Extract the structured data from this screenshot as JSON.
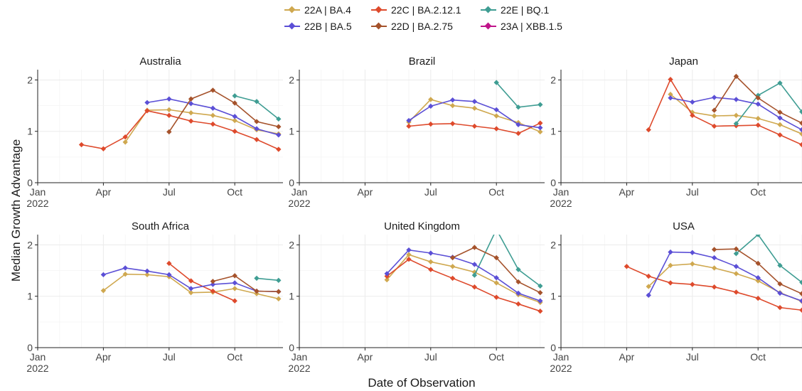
{
  "figure": {
    "ylabel": "Median Growth Advantage",
    "xlabel": "Date of Observation"
  },
  "legend": [
    {
      "label": "22A | BA.4",
      "color": "#cfa84f"
    },
    {
      "label": "22C | BA.2.12.1",
      "color": "#de4a2c"
    },
    {
      "label": "22E | BQ.1",
      "color": "#3f9d93"
    },
    {
      "label": "22B | BA.5",
      "color": "#5b4fd6"
    },
    {
      "label": "22D | BA.2.75",
      "color": "#a5522b"
    },
    {
      "label": "23A | XBB.1.5",
      "color": "#c0148a"
    }
  ],
  "chart_data": [
    {
      "type": "line",
      "title": "Australia",
      "xlim": [
        "2022-01-01",
        "2022-12-01"
      ],
      "ylim": [
        0,
        2.2
      ],
      "xticks": [
        "Jan\n2022",
        "Apr",
        "Jul",
        "Oct"
      ],
      "yticks": [
        "0",
        "1",
        "2"
      ],
      "series": [
        {
          "name": "22A | BA.4",
          "color": "#cfa84f",
          "x": [
            "2022-05-01",
            "2022-06-01",
            "2022-07-01",
            "2022-08-01",
            "2022-09-01",
            "2022-10-01",
            "2022-11-01",
            "2022-12-01"
          ],
          "y": [
            0.79,
            1.41,
            1.42,
            1.36,
            1.31,
            1.21,
            1.03,
            0.95
          ]
        },
        {
          "name": "22C | BA.2.12.1",
          "color": "#de4a2c",
          "x": [
            "2022-03-01",
            "2022-04-01",
            "2022-05-01",
            "2022-06-01",
            "2022-07-01",
            "2022-08-01",
            "2022-09-01",
            "2022-10-01",
            "2022-11-01",
            "2022-12-01"
          ],
          "y": [
            0.74,
            0.66,
            0.89,
            1.4,
            1.31,
            1.2,
            1.14,
            1.0,
            0.84,
            0.65
          ]
        },
        {
          "name": "22E | BQ.1",
          "color": "#3f9d93",
          "x": [
            "2022-10-01",
            "2022-11-01",
            "2022-12-01"
          ],
          "y": [
            1.69,
            1.58,
            1.24
          ]
        },
        {
          "name": "22B | BA.5",
          "color": "#5b4fd6",
          "x": [
            "2022-06-01",
            "2022-07-01",
            "2022-08-01",
            "2022-09-01",
            "2022-10-01",
            "2022-11-01",
            "2022-12-01"
          ],
          "y": [
            1.56,
            1.63,
            1.54,
            1.45,
            1.29,
            1.05,
            0.93
          ]
        },
        {
          "name": "22D | BA.2.75",
          "color": "#a5522b",
          "x": [
            "2022-07-01",
            "2022-08-01",
            "2022-09-01",
            "2022-10-01",
            "2022-11-01",
            "2022-12-01"
          ],
          "y": [
            0.99,
            1.63,
            1.8,
            1.55,
            1.19,
            1.09
          ]
        }
      ]
    },
    {
      "type": "line",
      "title": "Brazil",
      "xlim": [
        "2022-01-01",
        "2022-12-01"
      ],
      "ylim": [
        0,
        2.2
      ],
      "xticks": [
        "Jan\n2022",
        "Apr",
        "Jul",
        "Oct"
      ],
      "yticks": [
        "0",
        "1",
        "2"
      ],
      "series": [
        {
          "name": "22A | BA.4",
          "color": "#cfa84f",
          "x": [
            "2022-06-01",
            "2022-07-01",
            "2022-08-01",
            "2022-09-01",
            "2022-10-01",
            "2022-11-01",
            "2022-12-01"
          ],
          "y": [
            1.18,
            1.62,
            1.5,
            1.45,
            1.3,
            1.17,
            0.99
          ]
        },
        {
          "name": "22C | BA.2.12.1",
          "color": "#de4a2c",
          "x": [
            "2022-06-01",
            "2022-07-01",
            "2022-08-01",
            "2022-09-01",
            "2022-10-01",
            "2022-11-01",
            "2022-12-01"
          ],
          "y": [
            1.1,
            1.14,
            1.15,
            1.1,
            1.05,
            0.96,
            1.16
          ]
        },
        {
          "name": "22E | BQ.1",
          "color": "#3f9d93",
          "x": [
            "2022-10-01",
            "2022-11-01",
            "2022-12-01"
          ],
          "y": [
            1.95,
            1.47,
            1.52
          ]
        },
        {
          "name": "22B | BA.5",
          "color": "#5b4fd6",
          "x": [
            "2022-06-01",
            "2022-07-01",
            "2022-08-01",
            "2022-09-01",
            "2022-10-01",
            "2022-11-01",
            "2022-12-01"
          ],
          "y": [
            1.21,
            1.49,
            1.61,
            1.58,
            1.42,
            1.13,
            1.07
          ]
        }
      ]
    },
    {
      "type": "line",
      "title": "Japan",
      "xlim": [
        "2022-01-01",
        "2022-12-01"
      ],
      "ylim": [
        0,
        2.2
      ],
      "xticks": [
        "Jan\n2022",
        "Apr",
        "Jul",
        "Oct"
      ],
      "yticks": [
        "0",
        "1",
        "2"
      ],
      "series": [
        {
          "name": "22A | BA.4",
          "color": "#cfa84f",
          "x": [
            "2022-06-01",
            "2022-07-01",
            "2022-08-01",
            "2022-09-01",
            "2022-10-01",
            "2022-11-01",
            "2022-12-01"
          ],
          "y": [
            1.72,
            1.37,
            1.3,
            1.31,
            1.25,
            1.13,
            0.95
          ]
        },
        {
          "name": "22C | BA.2.12.1",
          "color": "#de4a2c",
          "x": [
            "2022-05-01",
            "2022-06-01",
            "2022-07-01",
            "2022-08-01",
            "2022-09-01",
            "2022-10-01",
            "2022-11-01",
            "2022-12-01"
          ],
          "y": [
            1.03,
            2.01,
            1.31,
            1.1,
            1.11,
            1.12,
            0.93,
            0.74
          ]
        },
        {
          "name": "22E | BQ.1",
          "color": "#3f9d93",
          "x": [
            "2022-09-01",
            "2022-10-01",
            "2022-11-01",
            "2022-12-01"
          ],
          "y": [
            1.15,
            1.7,
            1.94,
            1.38
          ]
        },
        {
          "name": "22B | BA.5",
          "color": "#5b4fd6",
          "x": [
            "2022-06-01",
            "2022-07-01",
            "2022-08-01",
            "2022-09-01",
            "2022-10-01",
            "2022-11-01",
            "2022-12-01"
          ],
          "y": [
            1.65,
            1.57,
            1.66,
            1.62,
            1.53,
            1.26,
            1.03
          ]
        },
        {
          "name": "22D | BA.2.75",
          "color": "#a5522b",
          "x": [
            "2022-08-01",
            "2022-09-01",
            "2022-10-01",
            "2022-11-01",
            "2022-12-01"
          ],
          "y": [
            1.41,
            2.07,
            1.65,
            1.37,
            1.16
          ]
        }
      ]
    },
    {
      "type": "line",
      "title": "South Africa",
      "xlim": [
        "2022-01-01",
        "2022-12-01"
      ],
      "ylim": [
        0,
        2.2
      ],
      "xticks": [
        "Jan\n2022",
        "Apr",
        "Jul",
        "Oct"
      ],
      "yticks": [
        "0",
        "1",
        "2"
      ],
      "series": [
        {
          "name": "22A | BA.4",
          "color": "#cfa84f",
          "x": [
            "2022-04-01",
            "2022-05-01",
            "2022-06-01",
            "2022-07-01",
            "2022-08-01",
            "2022-09-01",
            "2022-10-01",
            "2022-11-01",
            "2022-12-01"
          ],
          "y": [
            1.11,
            1.43,
            1.42,
            1.38,
            1.07,
            1.08,
            1.15,
            1.05,
            0.95
          ]
        },
        {
          "name": "22C | BA.2.12.1",
          "color": "#de4a2c",
          "x": [
            "2022-07-01",
            "2022-08-01",
            "2022-09-01",
            "2022-10-01"
          ],
          "y": [
            1.64,
            1.3,
            1.1,
            0.91
          ]
        },
        {
          "name": "22E | BQ.1",
          "color": "#3f9d93",
          "x": [
            "2022-11-01",
            "2022-12-01"
          ],
          "y": [
            1.35,
            1.31
          ]
        },
        {
          "name": "22B | BA.5",
          "color": "#5b4fd6",
          "x": [
            "2022-04-01",
            "2022-05-01",
            "2022-06-01",
            "2022-07-01",
            "2022-08-01",
            "2022-09-01",
            "2022-10-01",
            "2022-11-01",
            "2022-12-01"
          ],
          "y": [
            1.42,
            1.55,
            1.49,
            1.42,
            1.15,
            1.23,
            1.26,
            1.1,
            1.09
          ]
        },
        {
          "name": "22D | BA.2.75",
          "color": "#a5522b",
          "x": [
            "2022-09-01",
            "2022-10-01",
            "2022-11-01",
            "2022-12-01"
          ],
          "y": [
            1.29,
            1.4,
            1.1,
            1.09
          ]
        }
      ]
    },
    {
      "type": "line",
      "title": "United Kingdom",
      "xlim": [
        "2022-01-01",
        "2022-12-01"
      ],
      "ylim": [
        0,
        2.2
      ],
      "xticks": [
        "Jan\n2022",
        "Apr",
        "Jul",
        "Oct"
      ],
      "yticks": [
        "0",
        "1",
        "2"
      ],
      "series": [
        {
          "name": "22A | BA.4",
          "color": "#cfa84f",
          "x": [
            "2022-05-01",
            "2022-06-01",
            "2022-07-01",
            "2022-08-01",
            "2022-09-01",
            "2022-10-01",
            "2022-11-01",
            "2022-12-01"
          ],
          "y": [
            1.32,
            1.81,
            1.67,
            1.58,
            1.47,
            1.26,
            1.03,
            0.88
          ]
        },
        {
          "name": "22C | BA.2.12.1",
          "color": "#de4a2c",
          "x": [
            "2022-05-01",
            "2022-06-01",
            "2022-07-01",
            "2022-08-01",
            "2022-09-01",
            "2022-10-01",
            "2022-11-01",
            "2022-12-01"
          ],
          "y": [
            1.39,
            1.72,
            1.52,
            1.35,
            1.18,
            0.98,
            0.85,
            0.71
          ]
        },
        {
          "name": "22E | BQ.1",
          "color": "#3f9d93",
          "x": [
            "2022-09-01",
            "2022-10-01",
            "2022-11-01",
            "2022-12-01"
          ],
          "y": [
            1.41,
            2.3,
            1.52,
            1.2
          ]
        },
        {
          "name": "22B | BA.5",
          "color": "#5b4fd6",
          "x": [
            "2022-05-01",
            "2022-06-01",
            "2022-07-01",
            "2022-08-01",
            "2022-09-01",
            "2022-10-01",
            "2022-11-01",
            "2022-12-01"
          ],
          "y": [
            1.44,
            1.9,
            1.84,
            1.76,
            1.62,
            1.36,
            1.06,
            0.91
          ]
        },
        {
          "name": "22D | BA.2.75",
          "color": "#a5522b",
          "x": [
            "2022-08-01",
            "2022-09-01",
            "2022-10-01",
            "2022-11-01",
            "2022-12-01"
          ],
          "y": [
            1.75,
            1.95,
            1.75,
            1.28,
            1.07
          ]
        }
      ]
    },
    {
      "type": "line",
      "title": "USA",
      "xlim": [
        "2022-01-01",
        "2022-12-01"
      ],
      "ylim": [
        0,
        2.2
      ],
      "xticks": [
        "Jan\n2022",
        "Apr",
        "Jul",
        "Oct"
      ],
      "yticks": [
        "0",
        "1",
        "2"
      ],
      "series": [
        {
          "name": "22A | BA.4",
          "color": "#cfa84f",
          "x": [
            "2022-05-01",
            "2022-06-01",
            "2022-07-01",
            "2022-08-01",
            "2022-09-01",
            "2022-10-01",
            "2022-11-01",
            "2022-12-01"
          ],
          "y": [
            1.19,
            1.6,
            1.63,
            1.55,
            1.44,
            1.3,
            1.07,
            0.9
          ]
        },
        {
          "name": "22C | BA.2.12.1",
          "color": "#de4a2c",
          "x": [
            "2022-04-01",
            "2022-05-01",
            "2022-06-01",
            "2022-07-01",
            "2022-08-01",
            "2022-09-01",
            "2022-10-01",
            "2022-11-01",
            "2022-12-01"
          ],
          "y": [
            1.58,
            1.39,
            1.26,
            1.23,
            1.18,
            1.08,
            0.96,
            0.78,
            0.73
          ]
        },
        {
          "name": "22E | BQ.1",
          "color": "#3f9d93",
          "x": [
            "2022-09-01",
            "2022-10-01",
            "2022-11-01",
            "2022-12-01"
          ],
          "y": [
            1.83,
            2.2,
            1.6,
            1.27
          ]
        },
        {
          "name": "22B | BA.5",
          "color": "#5b4fd6",
          "x": [
            "2022-05-01",
            "2022-06-01",
            "2022-07-01",
            "2022-08-01",
            "2022-09-01",
            "2022-10-01",
            "2022-11-01",
            "2022-12-01"
          ],
          "y": [
            1.02,
            1.86,
            1.85,
            1.75,
            1.58,
            1.36,
            1.06,
            0.91
          ]
        },
        {
          "name": "22D | BA.2.75",
          "color": "#a5522b",
          "x": [
            "2022-08-01",
            "2022-09-01",
            "2022-10-01",
            "2022-11-01",
            "2022-12-01"
          ],
          "y": [
            1.91,
            1.92,
            1.64,
            1.24,
            1.05
          ]
        }
      ]
    }
  ]
}
